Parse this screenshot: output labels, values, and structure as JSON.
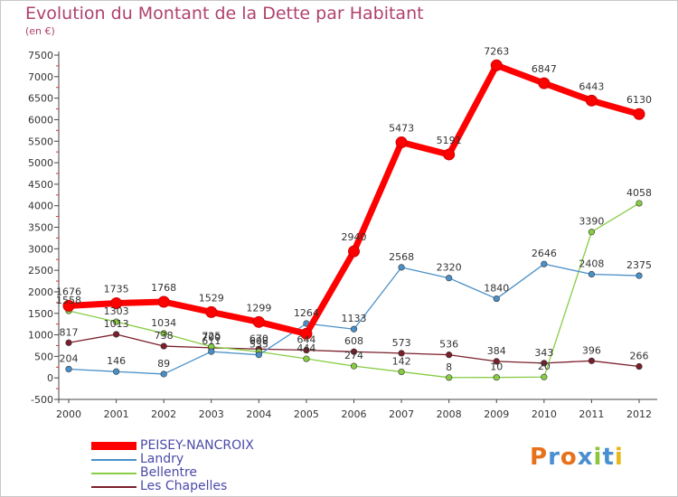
{
  "title": "Evolution du Montant de la Dette par Habitant",
  "unit": "(en €)",
  "logo": {
    "text": "Proxiti"
  },
  "chart_data": {
    "type": "line",
    "x": [
      "2000",
      "2001",
      "2002",
      "2003",
      "2004",
      "2005",
      "2006",
      "2007",
      "2008",
      "2009",
      "2010",
      "2011",
      "2012"
    ],
    "ylim": [
      -500,
      7500
    ],
    "yticks": [
      -500,
      0,
      500,
      1000,
      1500,
      2000,
      2500,
      3000,
      3500,
      4000,
      4500,
      5000,
      5500,
      6000,
      6500,
      7000,
      7500
    ],
    "grid": false,
    "legend_position": "bottom-left",
    "series": [
      {
        "name": "PEISEY-NANCROIX",
        "color": "#ff0000",
        "values": [
          1676,
          1735,
          1768,
          1529,
          1299,
          1026,
          2940,
          5473,
          5191,
          7263,
          6847,
          6443,
          6130
        ],
        "labels": [
          "1676",
          "1735",
          "1768",
          "1529",
          "1299",
          "",
          "2940",
          "5473",
          "5191",
          "7263",
          "6847",
          "6443",
          "6130"
        ]
      },
      {
        "name": "Landry",
        "color": "#4a90c8",
        "values": [
          204,
          146,
          89,
          611,
          535,
          1264,
          1133,
          2568,
          2320,
          1840,
          2646,
          2408,
          2375
        ],
        "labels": [
          "204",
          "146",
          "89",
          "611",
          "535",
          "1264",
          "1133",
          "2568",
          "2320",
          "1840",
          "2646",
          "2408",
          "2375"
        ]
      },
      {
        "name": "Bellentre",
        "color": "#88cc44",
        "values": [
          1558,
          1303,
          1034,
          725,
          608,
          444,
          274,
          142,
          8,
          10,
          20,
          3390,
          4058
        ],
        "labels": [
          "1558",
          "1303",
          "1034",
          "725",
          "608",
          "444",
          "274",
          "142",
          "8",
          "10",
          "20",
          "3390",
          "4058"
        ]
      },
      {
        "name": "Les Chapelles",
        "color": "#7a1f2a",
        "values": [
          817,
          1013,
          738,
          700,
          670,
          644,
          608,
          573,
          536,
          384,
          343,
          396,
          266
        ],
        "labels": [
          "817",
          "1013",
          "738",
          "700",
          "670",
          "644",
          "608",
          "573",
          "536",
          "384",
          "343",
          "396",
          "266"
        ]
      }
    ]
  }
}
